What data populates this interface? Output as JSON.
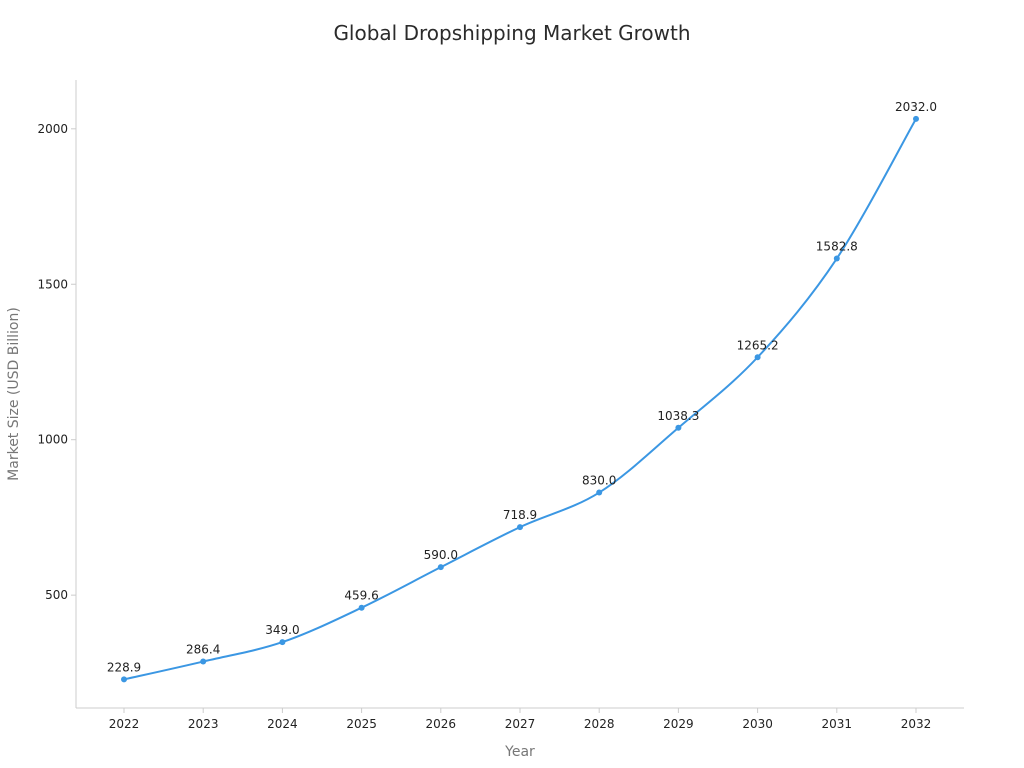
{
  "chart_data": {
    "type": "line",
    "title": "Global Dropshipping Market Growth",
    "xlabel": "Year",
    "ylabel": "Market Size (USD Billion)",
    "x": [
      "2022",
      "2023",
      "2024",
      "2025",
      "2026",
      "2027",
      "2028",
      "2029",
      "2030",
      "2031",
      "2032"
    ],
    "series": [
      {
        "values": [
          228.9,
          286.4,
          349.0,
          459.6,
          590.0,
          718.9,
          830.0,
          1038.3,
          1265.2,
          1582.8,
          2032.0
        ],
        "labels": [
          "228.9",
          "286.4",
          "349.0",
          "459.6",
          "590.0",
          "718.9",
          "830.0",
          "1038.3",
          "1265.2",
          "1582.8",
          "2032.0"
        ],
        "color": "#3b97e3"
      }
    ],
    "yticks": [
      500,
      1000,
      1500,
      2000
    ],
    "ytick_labels": [
      "500",
      "1000",
      "1500",
      "2000"
    ],
    "ylim": [
      137,
      2157
    ],
    "grid": false,
    "legend": "none",
    "smooth": true
  }
}
